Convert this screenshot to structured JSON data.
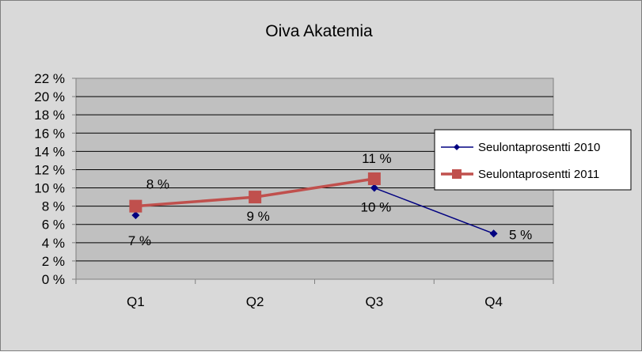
{
  "chart_data": {
    "type": "line",
    "title": "Oiva Akatemia",
    "categories": [
      "Q1",
      "Q2",
      "Q3",
      "Q4"
    ],
    "ylim": [
      0,
      22
    ],
    "yticks": [
      "0 %",
      "2 %",
      "4 %",
      "6 %",
      "8 %",
      "10 %",
      "12 %",
      "14 %",
      "16 %",
      "18 %",
      "20 %",
      "22 %"
    ],
    "grid": true,
    "legend_position": "right",
    "series": [
      {
        "name": "Seulontaprosentti 2010",
        "values": [
          7,
          null,
          10,
          5
        ],
        "labels": [
          "7 %",
          "",
          "10 %",
          "5 %"
        ],
        "color": "#000080",
        "marker": "diamond"
      },
      {
        "name": "Seulontaprosentti 2011",
        "values": [
          8,
          9,
          11,
          null
        ],
        "labels": [
          "8 %",
          "9 %",
          "11 %",
          ""
        ],
        "color": "#c0504d",
        "marker": "square"
      }
    ]
  }
}
